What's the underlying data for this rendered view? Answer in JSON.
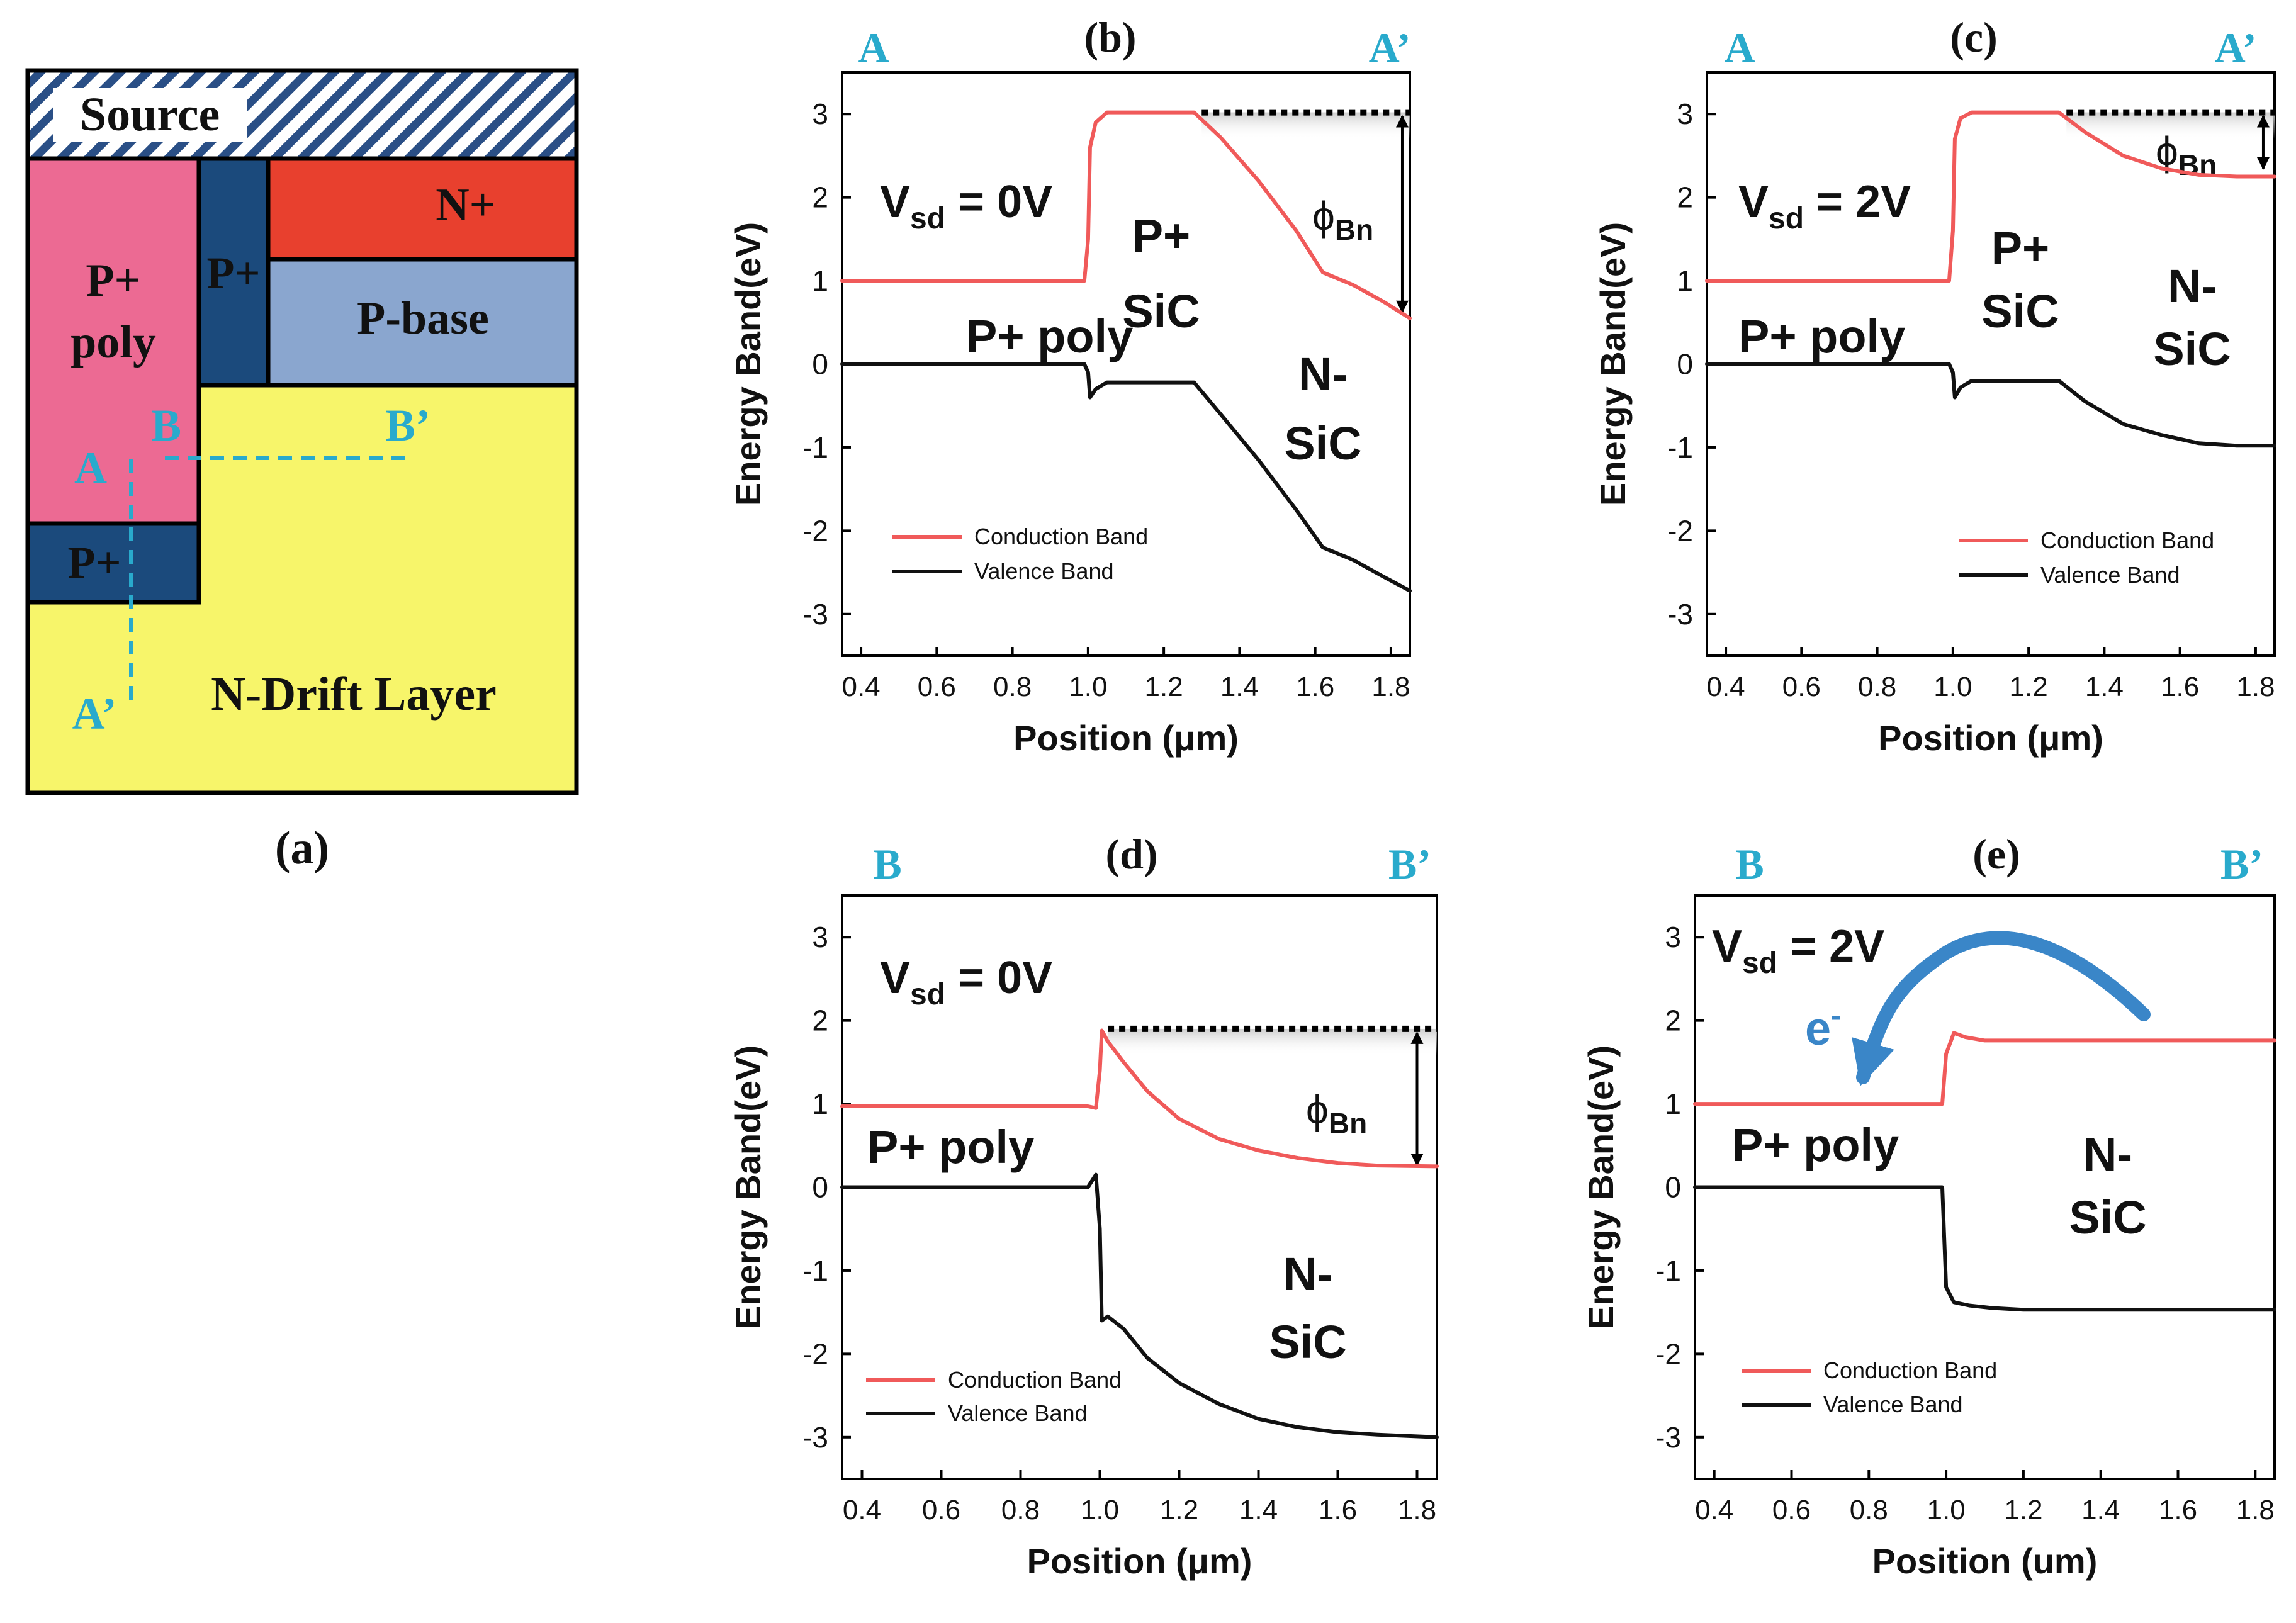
{
  "colors": {
    "conduction": "#f05a5a",
    "valence": "#111111",
    "cyan": "#29aacc",
    "arrow_blue": "#3a86c8",
    "source_hatch": "#2a4f86",
    "p_poly": "#ec6a93",
    "p_plus": "#1b4a7c",
    "n_plus": "#e8402e",
    "p_base": "#8aa6cf",
    "n_drift": "#f7f56a"
  },
  "device": {
    "caption": "(a)",
    "source": "Source",
    "p_poly_line1": "P+",
    "p_poly_line2": "poly",
    "p_plus_upper": "P+",
    "n_plus": "N+",
    "p_base": "P-base",
    "p_plus_lower": "P+",
    "n_drift": "N-Drift Layer",
    "cut_a": "A",
    "cut_a_prime": "A’",
    "cut_b": "B",
    "cut_b_prime": "B’"
  },
  "chart_data": [
    {
      "id": "b",
      "type": "line",
      "panel_label": "(b)",
      "left_marker": "A",
      "right_marker": "A’",
      "xlabel": "Position (μm)",
      "ylabel": "Energy Band(eV)",
      "xlim": [
        0.35,
        1.85
      ],
      "ylim": [
        -3.5,
        3.5
      ],
      "xticks": [
        0.4,
        0.6,
        0.8,
        1.0,
        1.2,
        1.4,
        1.6,
        1.8
      ],
      "xtick_labels": [
        "0.4",
        "0.6",
        "0.8",
        "1.0",
        "1.2",
        "1.4",
        "1.6",
        "1.8"
      ],
      "yticks": [
        -3,
        -2,
        -1,
        0,
        1,
        2,
        3
      ],
      "ytick_labels": [
        "-3",
        "-2",
        "-1",
        "0",
        "1",
        "2",
        "3"
      ],
      "voltage_prefix": "V",
      "voltage_sub": "sd",
      "voltage_value": " = 0V",
      "phi_symbol": "ϕ",
      "phi_sub": "Bn",
      "region_labels": [
        "P+ poly",
        "P+",
        "SiC",
        "N-",
        "SiC"
      ],
      "legend": [
        "Conduction Band",
        "Valence Band"
      ],
      "series": [
        {
          "name": "Conduction Band",
          "x": [
            0.35,
            0.99,
            1.0,
            1.005,
            1.02,
            1.05,
            1.28,
            1.35,
            1.45,
            1.55,
            1.62,
            1.7,
            1.78,
            1.85
          ],
          "y": [
            1.0,
            1.0,
            1.5,
            2.6,
            2.9,
            3.02,
            3.02,
            2.72,
            2.2,
            1.6,
            1.1,
            0.95,
            0.75,
            0.55
          ]
        },
        {
          "name": "Valence Band",
          "x": [
            0.35,
            0.99,
            1.0,
            1.005,
            1.02,
            1.05,
            1.28,
            1.35,
            1.45,
            1.55,
            1.62,
            1.7,
            1.78,
            1.85
          ],
          "y": [
            0.0,
            0.0,
            -0.1,
            -0.4,
            -0.3,
            -0.22,
            -0.22,
            -0.6,
            -1.15,
            -1.75,
            -2.2,
            -2.35,
            -2.55,
            -2.72
          ]
        }
      ]
    },
    {
      "id": "c",
      "type": "line",
      "panel_label": "(c)",
      "left_marker": "A",
      "right_marker": "A’",
      "xlabel": "Position (μm)",
      "ylabel": "Energy Band(eV)",
      "xlim": [
        0.35,
        1.85
      ],
      "ylim": [
        -3.5,
        3.5
      ],
      "xticks": [
        0.4,
        0.6,
        0.8,
        1.0,
        1.2,
        1.4,
        1.6,
        1.8
      ],
      "xtick_labels": [
        "0.4",
        "0.6",
        "0.8",
        "1.0",
        "1.2",
        "1.4",
        "1.6",
        "1.8"
      ],
      "yticks": [
        -3,
        -2,
        -1,
        0,
        1,
        2,
        3
      ],
      "ytick_labels": [
        "-3",
        "-2",
        "-1",
        "0",
        "1",
        "2",
        "3"
      ],
      "voltage_prefix": "V",
      "voltage_sub": "sd",
      "voltage_value": " = 2V",
      "phi_symbol": "ϕ",
      "phi_sub": "Bn",
      "region_labels": [
        "P+ poly",
        "P+",
        "SiC",
        "N-",
        "SiC"
      ],
      "legend": [
        "Conduction Band",
        "Valence Band"
      ],
      "series": [
        {
          "name": "Conduction Band",
          "x": [
            0.35,
            0.99,
            1.0,
            1.005,
            1.02,
            1.05,
            1.28,
            1.35,
            1.45,
            1.55,
            1.65,
            1.75,
            1.85
          ],
          "y": [
            1.0,
            1.0,
            1.6,
            2.7,
            2.95,
            3.02,
            3.02,
            2.78,
            2.5,
            2.35,
            2.27,
            2.25,
            2.25
          ]
        },
        {
          "name": "Valence Band",
          "x": [
            0.35,
            0.99,
            1.0,
            1.005,
            1.02,
            1.05,
            1.28,
            1.35,
            1.45,
            1.55,
            1.65,
            1.75,
            1.85
          ],
          "y": [
            0.0,
            0.0,
            -0.1,
            -0.4,
            -0.28,
            -0.2,
            -0.2,
            -0.45,
            -0.72,
            -0.85,
            -0.95,
            -0.98,
            -0.98
          ]
        }
      ]
    },
    {
      "id": "d",
      "type": "line",
      "panel_label": "(d)",
      "left_marker": "B",
      "right_marker": "B’",
      "xlabel": "Position (μm)",
      "ylabel": "Energy Band(eV)",
      "xlim": [
        0.35,
        1.85
      ],
      "ylim": [
        -3.5,
        3.5
      ],
      "xticks": [
        0.4,
        0.6,
        0.8,
        1.0,
        1.2,
        1.4,
        1.6,
        1.8
      ],
      "xtick_labels": [
        "0.4",
        "0.6",
        "0.8",
        "1.0",
        "1.2",
        "1.4",
        "1.6",
        "1.8"
      ],
      "yticks": [
        -3,
        -2,
        -1,
        0,
        1,
        2,
        3
      ],
      "ytick_labels": [
        "-3",
        "-2",
        "-1",
        "0",
        "1",
        "2",
        "3"
      ],
      "voltage_prefix": "V",
      "voltage_sub": "sd",
      "voltage_value": " = 0V",
      "phi_symbol": "ϕ",
      "phi_sub": "Bn",
      "region_labels": [
        "P+ poly",
        "N-",
        "SiC"
      ],
      "legend": [
        "Conduction Band",
        "Valence Band"
      ],
      "series": [
        {
          "name": "Conduction Band",
          "x": [
            0.35,
            0.97,
            0.99,
            1.0,
            1.005,
            1.02,
            1.06,
            1.12,
            1.2,
            1.3,
            1.4,
            1.5,
            1.6,
            1.7,
            1.85
          ],
          "y": [
            0.97,
            0.97,
            0.95,
            1.4,
            1.88,
            1.75,
            1.5,
            1.15,
            0.82,
            0.58,
            0.44,
            0.35,
            0.29,
            0.26,
            0.25
          ]
        },
        {
          "name": "Valence Band",
          "x": [
            0.35,
            0.97,
            0.99,
            1.0,
            1.005,
            1.02,
            1.06,
            1.12,
            1.2,
            1.3,
            1.4,
            1.5,
            1.6,
            1.7,
            1.85
          ],
          "y": [
            0.0,
            0.0,
            0.15,
            -0.5,
            -1.6,
            -1.55,
            -1.7,
            -2.05,
            -2.35,
            -2.6,
            -2.78,
            -2.88,
            -2.94,
            -2.97,
            -3.0
          ]
        }
      ]
    },
    {
      "id": "e",
      "type": "line",
      "panel_label": "(e)",
      "left_marker": "B",
      "right_marker": "B’",
      "xlabel": "Position (um)",
      "ylabel": "Energy Band(eV)",
      "xlim": [
        0.35,
        1.85
      ],
      "ylim": [
        -3.5,
        3.5
      ],
      "xticks": [
        0.4,
        0.6,
        0.8,
        1.0,
        1.2,
        1.4,
        1.6,
        1.8
      ],
      "xtick_labels": [
        "0.4",
        "0.6",
        "0.8",
        "1.0",
        "1.2",
        "1.4",
        "1.6",
        "1.8"
      ],
      "yticks": [
        -3,
        -2,
        -1,
        0,
        1,
        2,
        3
      ],
      "ytick_labels": [
        "-3",
        "-2",
        "-1",
        "0",
        "1",
        "2",
        "3"
      ],
      "voltage_prefix": "V",
      "voltage_sub": "sd",
      "voltage_value": " = 2V",
      "electron_symbol": "e",
      "electron_sup": "-",
      "region_labels": [
        "P+ poly",
        "N-",
        "SiC"
      ],
      "legend": [
        "Conduction Band",
        "Valence Band"
      ],
      "series": [
        {
          "name": "Conduction Band",
          "x": [
            0.35,
            0.99,
            1.0,
            1.02,
            1.05,
            1.1,
            1.85
          ],
          "y": [
            1.0,
            1.0,
            1.6,
            1.85,
            1.8,
            1.76,
            1.76
          ]
        },
        {
          "name": "Valence Band",
          "x": [
            0.35,
            0.99,
            1.0,
            1.02,
            1.06,
            1.12,
            1.2,
            1.85
          ],
          "y": [
            0.0,
            0.0,
            -1.2,
            -1.38,
            -1.42,
            -1.45,
            -1.47,
            -1.47
          ]
        }
      ]
    }
  ]
}
